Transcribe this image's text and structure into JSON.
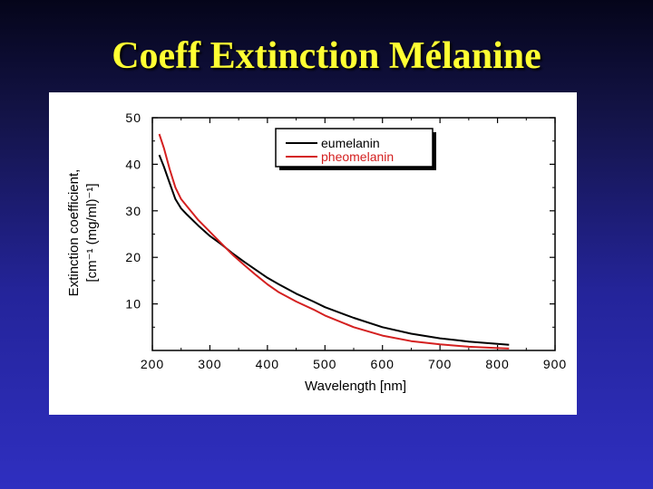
{
  "slide": {
    "title": "Coeff Extinction Mélanine"
  },
  "chart_data": {
    "type": "line",
    "xlabel": "Wavelength [nm]",
    "ylabel_line1": "Extinction coefficient,",
    "ylabel_line2": "[cm⁻¹ (mg/ml)⁻¹]",
    "xlim": [
      200,
      900
    ],
    "ylim": [
      0,
      50
    ],
    "x_ticks": [
      200,
      300,
      400,
      500,
      600,
      700,
      800,
      900
    ],
    "y_ticks": [
      10,
      20,
      30,
      40,
      50
    ],
    "legend_position": "top-right",
    "grid": false,
    "series": [
      {
        "name": "eumelanin",
        "color": "#000000",
        "x": [
          212,
          220,
          230,
          240,
          250,
          260,
          280,
          300,
          320,
          340,
          360,
          380,
          400,
          420,
          450,
          480,
          500,
          550,
          600,
          650,
          700,
          750,
          800,
          820
        ],
        "y": [
          42,
          39.5,
          36,
          32.5,
          30.5,
          29.2,
          26.8,
          24.6,
          22.8,
          20.8,
          19,
          17.3,
          15.6,
          14.2,
          12.2,
          10.5,
          9.3,
          7.0,
          5.0,
          3.6,
          2.6,
          1.9,
          1.4,
          1.2
        ]
      },
      {
        "name": "pheomelanin",
        "color": "#d42020",
        "x": [
          212,
          220,
          230,
          240,
          250,
          260,
          280,
          300,
          320,
          340,
          360,
          380,
          400,
          420,
          450,
          480,
          500,
          550,
          600,
          650,
          700,
          750,
          800,
          820
        ],
        "y": [
          46.5,
          43.5,
          39,
          35,
          32.5,
          31,
          28,
          25.5,
          23,
          20.5,
          18.3,
          16.2,
          14.2,
          12.5,
          10.5,
          8.8,
          7.5,
          5.0,
          3.2,
          2.0,
          1.3,
          0.8,
          0.5,
          0.4
        ]
      }
    ]
  }
}
